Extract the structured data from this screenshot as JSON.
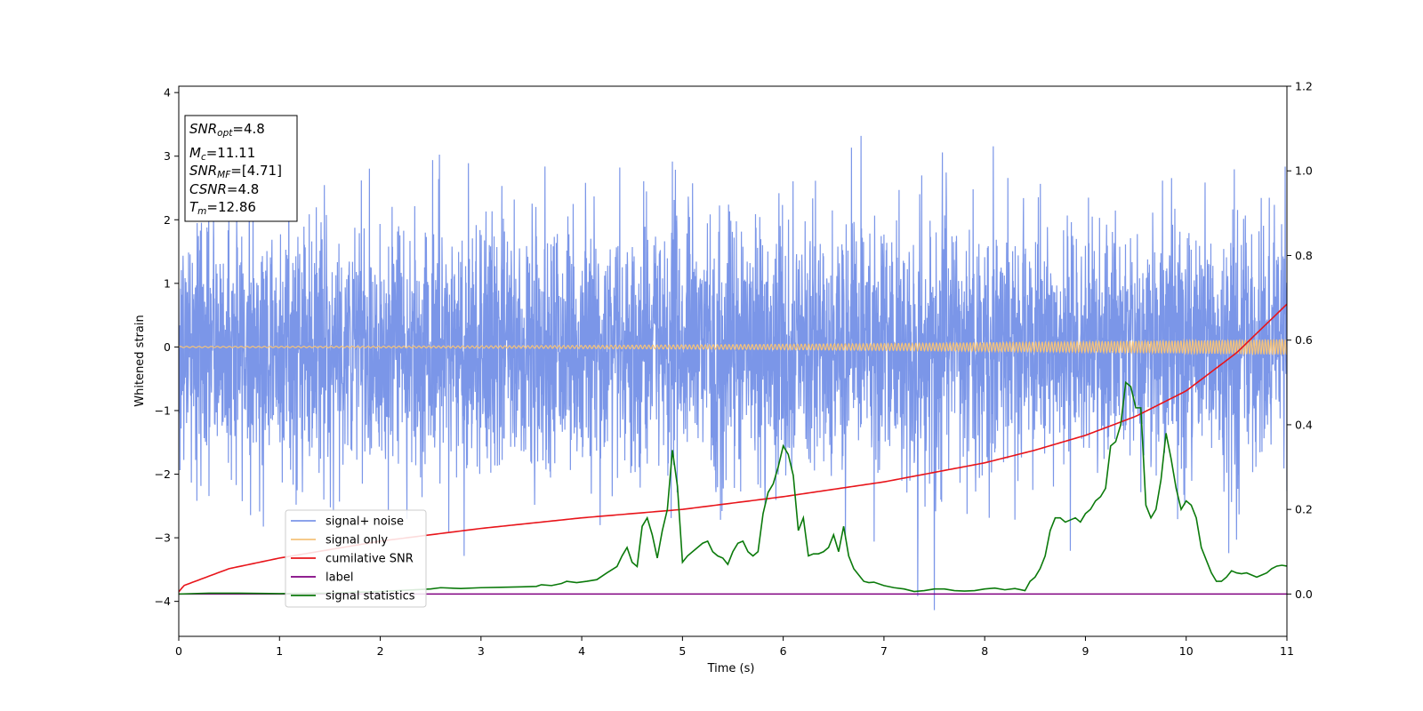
{
  "chart_data": {
    "type": "line",
    "xlabel": "Time (s)",
    "ylabel": "Whitened strain",
    "xlim": [
      0,
      11
    ],
    "ylim": [
      -4.55,
      4.1
    ],
    "y2lim": [
      -0.1,
      1.2
    ],
    "x_ticks": [
      0,
      1,
      2,
      3,
      4,
      5,
      6,
      7,
      8,
      9,
      10,
      11
    ],
    "y_ticks": [
      4,
      3,
      2,
      1,
      0,
      -1,
      -2,
      -3,
      -4
    ],
    "y_tick_labels": [
      "4",
      "3",
      "2",
      "1",
      "0",
      "−1",
      "−2",
      "−3",
      "−4"
    ],
    "y2_ticks": [
      1.2,
      1.0,
      0.8,
      0.6,
      0.4,
      0.2,
      0.0
    ],
    "y2_tick_labels": [
      "1.2",
      "1.0",
      "0.8",
      "0.6",
      "0.4",
      "0.2",
      "0.0"
    ],
    "grid": false,
    "legend_position": "lower-left",
    "annotation": [
      {
        "sym": "SNR",
        "sub": "opt",
        "value": "=4.8"
      },
      {
        "sym": "M",
        "sub": "c",
        "value": "=11.11"
      },
      {
        "sym": "SNR",
        "sub": "MF",
        "value": "=[4.71]"
      },
      {
        "sym": "CSNR",
        "sub": "",
        "value": "=4.8"
      },
      {
        "sym": "T",
        "sub": "m",
        "value": "=12.86"
      }
    ],
    "series": [
      {
        "name": "signal+ noise",
        "axis": "left",
        "color": "#7b96e8",
        "noise_std": 1.0,
        "x_range": [
          0,
          11
        ]
      },
      {
        "name": "signal only",
        "axis": "left",
        "color": "#f5c37a",
        "amplitude_start": 0.01,
        "amplitude_end": 0.12,
        "x_range": [
          0,
          11
        ]
      },
      {
        "name": "cumilative SNR",
        "axis": "right",
        "color": "#e8141a",
        "x": [
          0,
          0.05,
          0.5,
          1,
          2,
          3,
          4,
          5,
          6,
          7,
          8,
          8.5,
          9,
          9.5,
          10,
          10.5,
          11
        ],
        "y": [
          0.005,
          0.02,
          0.06,
          0.085,
          0.125,
          0.155,
          0.18,
          0.2,
          0.23,
          0.265,
          0.31,
          0.34,
          0.375,
          0.42,
          0.48,
          0.57,
          0.685
        ]
      },
      {
        "name": "label",
        "axis": "right",
        "color": "#800080",
        "x": [
          0,
          11
        ],
        "y": [
          0,
          0
        ]
      },
      {
        "name": "signal statistics",
        "axis": "right",
        "color": "#0b7a0b",
        "x": [
          0,
          0.3,
          0.6,
          1.0,
          1.5,
          2.0,
          2.5,
          2.6,
          2.8,
          3.0,
          3.2,
          3.4,
          3.55,
          3.6,
          3.7,
          3.8,
          3.85,
          3.95,
          4.05,
          4.15,
          4.25,
          4.35,
          4.4,
          4.45,
          4.5,
          4.55,
          4.6,
          4.65,
          4.7,
          4.75,
          4.8,
          4.85,
          4.9,
          4.95,
          5.0,
          5.05,
          5.1,
          5.15,
          5.2,
          5.25,
          5.3,
          5.35,
          5.4,
          5.45,
          5.5,
          5.55,
          5.6,
          5.65,
          5.7,
          5.75,
          5.8,
          5.85,
          5.9,
          5.95,
          6.0,
          6.05,
          6.1,
          6.15,
          6.2,
          6.25,
          6.3,
          6.35,
          6.4,
          6.45,
          6.5,
          6.55,
          6.6,
          6.65,
          6.7,
          6.75,
          6.8,
          6.85,
          6.9,
          7.0,
          7.1,
          7.2,
          7.3,
          7.4,
          7.5,
          7.6,
          7.7,
          7.8,
          7.9,
          8.0,
          8.1,
          8.2,
          8.3,
          8.4,
          8.45,
          8.5,
          8.55,
          8.6,
          8.65,
          8.7,
          8.75,
          8.8,
          8.85,
          8.9,
          8.95,
          9.0,
          9.05,
          9.1,
          9.15,
          9.2,
          9.25,
          9.3,
          9.35,
          9.4,
          9.45,
          9.5,
          9.55,
          9.6,
          9.65,
          9.7,
          9.75,
          9.8,
          9.85,
          9.9,
          9.95,
          10.0,
          10.05,
          10.1,
          10.15,
          10.2,
          10.25,
          10.3,
          10.35,
          10.4,
          10.45,
          10.5,
          10.55,
          10.6,
          10.65,
          10.7,
          10.75,
          10.8,
          10.85,
          10.9,
          10.95,
          11.0
        ],
        "y": [
          0.0,
          0.002,
          0.002,
          0.001,
          0.002,
          0.006,
          0.012,
          0.015,
          0.013,
          0.015,
          0.016,
          0.017,
          0.018,
          0.022,
          0.02,
          0.025,
          0.03,
          0.027,
          0.03,
          0.034,
          0.05,
          0.065,
          0.09,
          0.11,
          0.075,
          0.065,
          0.16,
          0.18,
          0.14,
          0.085,
          0.15,
          0.2,
          0.34,
          0.255,
          0.075,
          0.09,
          0.1,
          0.11,
          0.12,
          0.125,
          0.1,
          0.09,
          0.085,
          0.07,
          0.1,
          0.12,
          0.125,
          0.1,
          0.09,
          0.1,
          0.19,
          0.24,
          0.26,
          0.3,
          0.35,
          0.33,
          0.28,
          0.15,
          0.18,
          0.09,
          0.095,
          0.095,
          0.1,
          0.11,
          0.14,
          0.1,
          0.16,
          0.09,
          0.06,
          0.045,
          0.03,
          0.027,
          0.028,
          0.02,
          0.015,
          0.012,
          0.006,
          0.008,
          0.012,
          0.012,
          0.008,
          0.007,
          0.008,
          0.012,
          0.014,
          0.01,
          0.013,
          0.008,
          0.03,
          0.04,
          0.06,
          0.09,
          0.15,
          0.18,
          0.18,
          0.17,
          0.175,
          0.18,
          0.17,
          0.19,
          0.2,
          0.22,
          0.23,
          0.25,
          0.35,
          0.36,
          0.4,
          0.5,
          0.49,
          0.44,
          0.44,
          0.21,
          0.18,
          0.2,
          0.27,
          0.38,
          0.32,
          0.25,
          0.2,
          0.22,
          0.21,
          0.18,
          0.11,
          0.08,
          0.05,
          0.03,
          0.03,
          0.04,
          0.055,
          0.05,
          0.048,
          0.05,
          0.045,
          0.04,
          0.045,
          0.05,
          0.06,
          0.066,
          0.068,
          0.066
        ]
      }
    ]
  }
}
